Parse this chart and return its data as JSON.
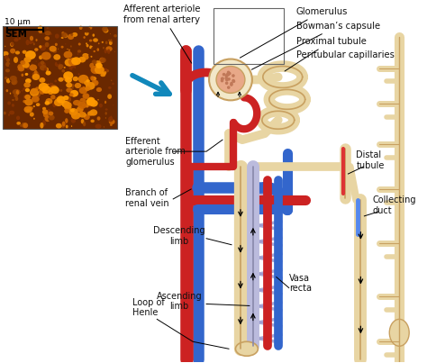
{
  "background_color": "#ffffff",
  "figsize": [
    4.74,
    4.03
  ],
  "dpi": 100,
  "labels": {
    "afferent_arteriole": "Afferent arteriole\nfrom renal artery",
    "glomerulus": "Glomerulus",
    "bowmans_capsule": "Bowman’s capsule",
    "proximal_tubule": "Proximal tubule",
    "peritubular_capillaries": "Peritubular capillaries",
    "efferent_arteriole": "Efferent\narteriole from\nglomerulus",
    "branch_renal_vein": "Branch of\nrenal vein",
    "descending_limb": "Descending\nlimb",
    "ascending_limb": "Ascending\nlimb",
    "loop_of_henle": "Loop of\nHenle",
    "distal_tubule": "Distal\ntubule",
    "collecting_duct": "Collecting\nduct",
    "vasa_recta": "Vasa\nrecta",
    "sem": "SEM",
    "scale": "10 μm"
  },
  "colors": {
    "red": "#cc2222",
    "red2": "#dd3333",
    "blue": "#3366cc",
    "blue2": "#5588ee",
    "tan": "#e8d5a3",
    "tan_outline": "#c8a060",
    "tan_dark": "#b89050",
    "light_tan": "#f2e8c8",
    "glom_fill": "#e8a888",
    "glom_dot": "#c07858",
    "sem_bg": "#6a2800",
    "sem_mid": "#994400",
    "sem_light": "#cc6600",
    "sem_bright": "#ee8800",
    "arrow_blue": "#1188bb",
    "lavender": "#9999cc",
    "lavender2": "#bbbbdd",
    "text_color": "#111111",
    "black": "#000000"
  }
}
